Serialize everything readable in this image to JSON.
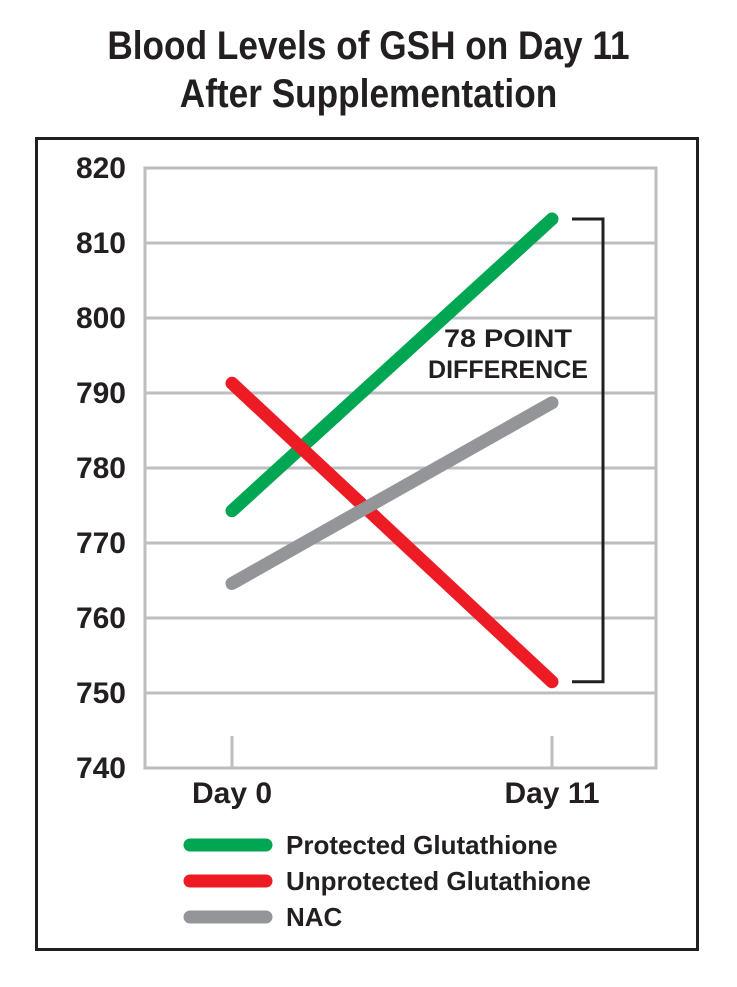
{
  "chart_data": {
    "type": "line",
    "title_lines": [
      "Blood Levels of GSH on Day 11",
      "After Supplementation"
    ],
    "categories": [
      "Day 0",
      "Day 11"
    ],
    "y_ticks": [
      820,
      810,
      800,
      790,
      780,
      770,
      760,
      750,
      740
    ],
    "ylim": [
      740,
      820
    ],
    "grid": true,
    "series": [
      {
        "name": "Protected Glutathione",
        "color": "#00a651",
        "values": [
          774.3,
          813.2
        ]
      },
      {
        "name": "Unprotected Glutathione",
        "color": "#ed1c24",
        "values": [
          791.3,
          751.5
        ]
      },
      {
        "name": "NAC",
        "color": "#939598",
        "values": [
          764.6,
          788.7
        ]
      }
    ],
    "annotation": {
      "lines": [
        "78 POINT",
        "DIFFERENCE"
      ]
    },
    "legend_position": "bottom"
  }
}
